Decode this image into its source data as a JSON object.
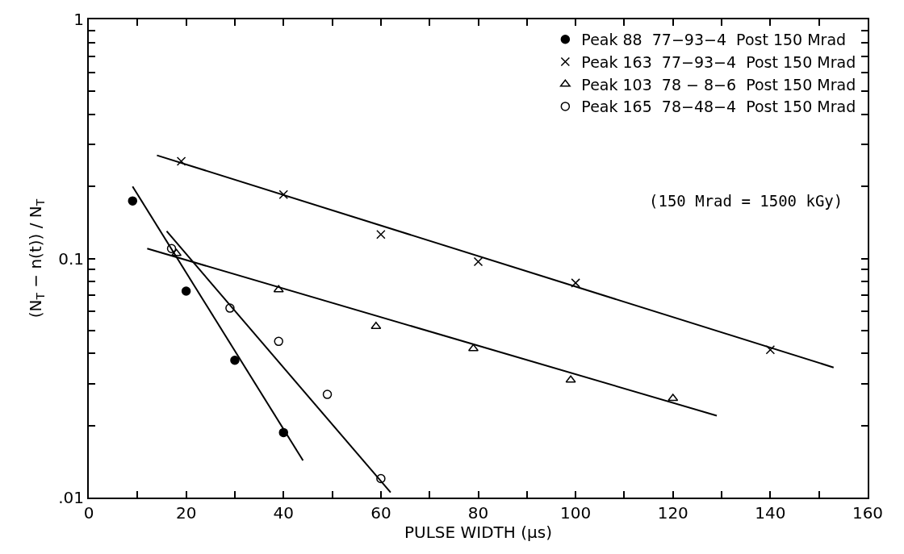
{
  "chart_data": {
    "type": "scatter",
    "xlabel": "PULSE WIDTH (μs)",
    "ylabel": "(N$_{T}$ − n(t)) / N$_{T}$",
    "log": "y",
    "legend": "top right",
    "xlim": [
      0,
      160
    ],
    "xticks": [
      0,
      {
        "value": 10,
        "label": null
      },
      20,
      {
        "value": 30,
        "label": null
      },
      40,
      {
        "value": 50,
        "label": null
      },
      60,
      {
        "value": 70,
        "label": null
      },
      80,
      {
        "value": 90,
        "label": null
      },
      100,
      {
        "value": 110,
        "label": null
      },
      120,
      {
        "value": 130,
        "label": null
      },
      140,
      {
        "value": 150,
        "label": null
      },
      160
    ],
    "ylim": [
      0.01,
      1
    ],
    "yticks": [
      {
        "value": 0.01,
        "label": ".01"
      },
      {
        "value": 0.02,
        "label": null
      },
      {
        "value": 0.03,
        "label": null
      },
      {
        "value": 0.04,
        "label": null
      },
      {
        "value": 0.05,
        "label": null
      },
      {
        "value": 0.06,
        "label": null
      },
      {
        "value": 0.07,
        "label": null
      },
      {
        "value": 0.08,
        "label": null
      },
      {
        "value": 0.09,
        "label": null
      },
      0.1,
      {
        "value": 0.2,
        "label": null
      },
      {
        "value": 0.3,
        "label": null
      },
      {
        "value": 0.4,
        "label": null
      },
      {
        "value": 0.5,
        "label": null
      },
      {
        "value": 0.6,
        "label": null
      },
      {
        "value": 0.7,
        "label": null
      },
      {
        "value": 0.8,
        "label": null
      },
      {
        "value": 0.9,
        "label": null
      },
      1
    ],
    "annotations": [
      "(150 Mrad = 1500 kGy)"
    ],
    "series": [
      {
        "name": "Peak 88  77−93−4  Post 150 Mrad",
        "color": "#000000",
        "marker": "circle",
        "x": [
          9,
          20,
          30,
          40
        ],
        "values": [
          0.174,
          0.073,
          0.0375,
          0.0187
        ]
      },
      {
        "name": "Peak 163  77−93−4  Post 150 Mrad",
        "color": "#000000",
        "marker": "cross",
        "x": [
          19,
          40,
          60,
          80,
          100,
          140
        ],
        "values": [
          0.255,
          0.185,
          0.126,
          0.097,
          0.079,
          0.0415
        ]
      },
      {
        "name": "Peak 103  78 − 8−6  Post 150 Mrad",
        "color": "#000000",
        "marker": "triangle",
        "x": [
          18,
          39,
          59,
          79,
          99,
          120
        ],
        "values": [
          0.105,
          0.074,
          0.052,
          0.042,
          0.031,
          0.026
        ]
      },
      {
        "name": "Peak 165  78−48−4  Post 150 Mrad",
        "color": "#000000",
        "marker": "open circle",
        "x": [
          17,
          29,
          39,
          49,
          60
        ],
        "values": [
          0.11,
          0.062,
          0.045,
          0.027,
          0.012
        ]
      },
      {
        "type": "line",
        "color": "#000000",
        "marker": "none",
        "x": [
          9,
          44
        ],
        "values": [
          0.2,
          0.0143
        ]
      },
      {
        "type": "line",
        "color": "#000000",
        "marker": "none",
        "x": [
          14,
          153
        ],
        "values": [
          0.27,
          0.035
        ]
      },
      {
        "type": "line",
        "color": "#000000",
        "marker": "none",
        "x": [
          12,
          129
        ],
        "values": [
          0.11,
          0.022
        ]
      },
      {
        "type": "line",
        "color": "#000000",
        "marker": "none",
        "x": [
          16,
          62
        ],
        "values": [
          0.13,
          0.0105
        ]
      }
    ]
  }
}
